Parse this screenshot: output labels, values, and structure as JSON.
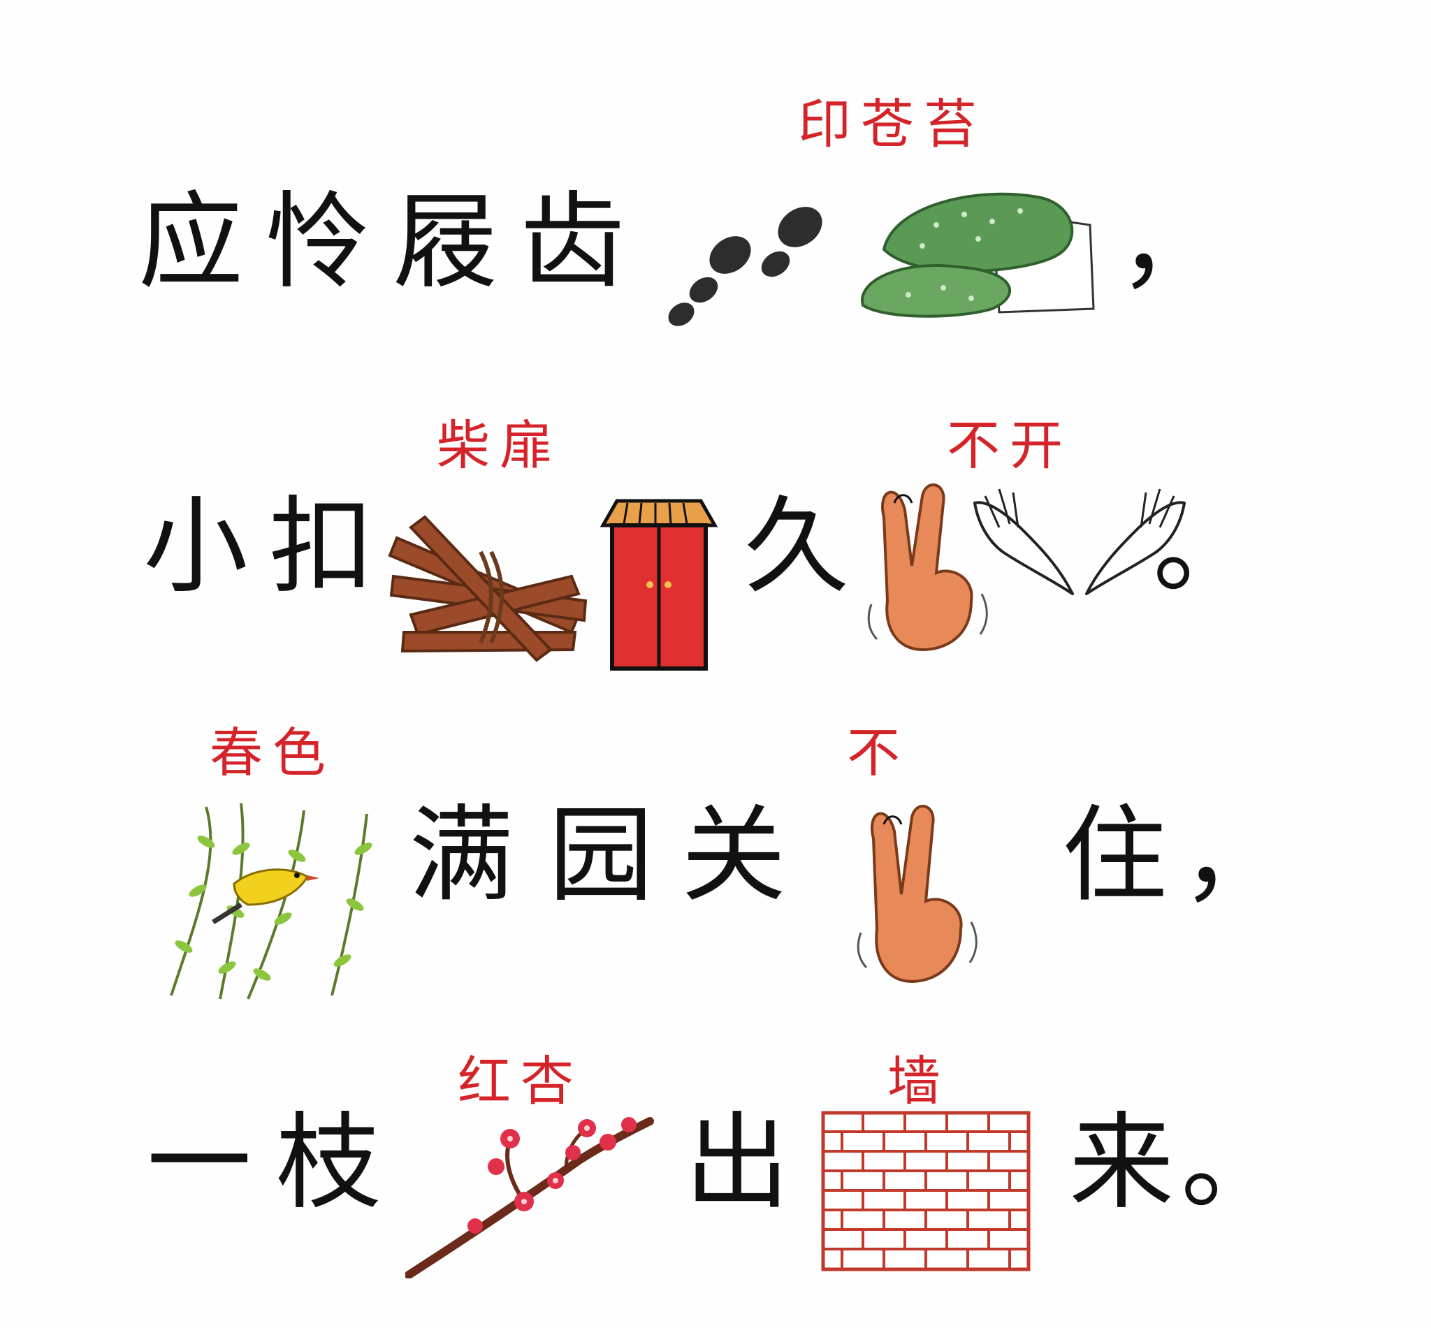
{
  "lines": [
    {
      "chars": [
        "应",
        "怜",
        "屐",
        "齿"
      ],
      "end_punct": "，",
      "annotations": [
        {
          "text": "印苍苔",
          "picture": "footprints-on-mossy-rock"
        }
      ]
    },
    {
      "chars": [
        "小",
        "扣"
      ],
      "middle_char": "久",
      "end_punct": "。",
      "annotations": [
        {
          "text": "柴扉",
          "picture": "firewood-bundle and red-door"
        },
        {
          "text": "不开",
          "picture": "wagging-finger and open-hands"
        }
      ]
    },
    {
      "chars": [
        "满",
        "园",
        "关"
      ],
      "after_char": "住",
      "end_punct": "，",
      "annotations": [
        {
          "text": "春色",
          "picture": "willow-with-oriole"
        },
        {
          "text": "不",
          "picture": "wagging-finger"
        }
      ]
    },
    {
      "chars": [
        "一",
        "枝"
      ],
      "middle_char": "出",
      "end_char": "来",
      "end_punct": "。",
      "annotations": [
        {
          "text": "红杏",
          "picture": "apricot-blossom-branch"
        },
        {
          "text": "墙",
          "picture": "brick-wall"
        }
      ]
    }
  ],
  "colors": {
    "text": "#111111",
    "annotation": "#d4242a",
    "moss": "#5a9a55",
    "wood": "#9b4a2a",
    "door": "#e03030",
    "skin": "#e8895a",
    "willow": "#8cc63f",
    "bird": "#f2d01e",
    "blossom": "#e0304a",
    "brick": "#c0392b"
  }
}
